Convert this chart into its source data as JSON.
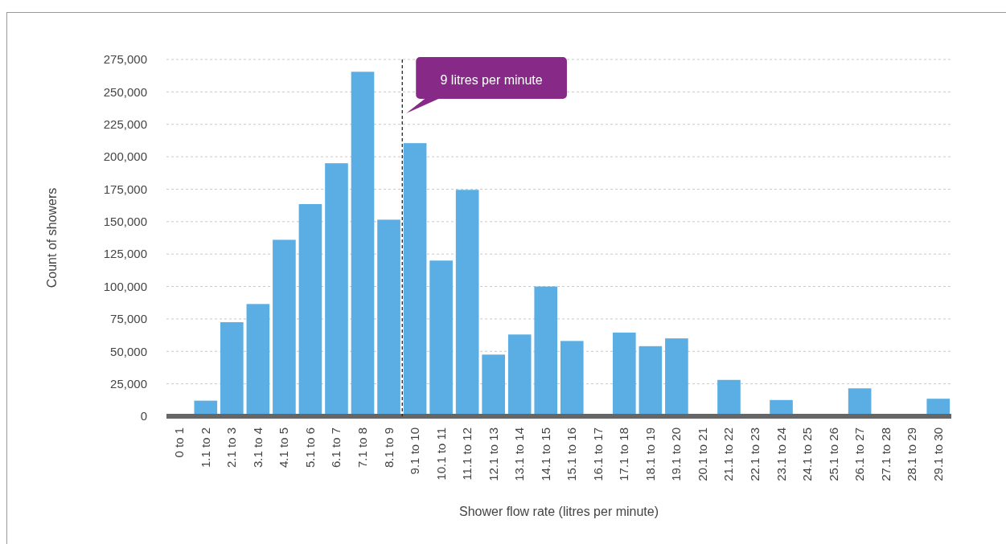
{
  "chart_data": {
    "type": "bar",
    "xlabel": "Shower flow rate (litres per minute)",
    "ylabel": "Count of showers",
    "categories": [
      "0 to 1",
      "1.1 to 2",
      "2.1 to 3",
      "3.1 to 4",
      "4.1 to 5",
      "5.1 to 6",
      "6.1 to 7",
      "7.1 to 8",
      "8.1 to 9",
      "9.1 to 10",
      "10.1 to 11",
      "11.1 to 12",
      "12.1 to 13",
      "13.1 to 14",
      "14.1 to 15",
      "15.1 to 16",
      "16.1 to 17",
      "17.1 to 18",
      "18.1 to 19",
      "19.1 to 20",
      "20.1 to 21",
      "21.1 to 22",
      "22.1 to 23",
      "23.1 to 24",
      "24.1 to 25",
      "25.1 to 26",
      "26.1 to 27",
      "27.1 to 28",
      "28.1 to 29",
      "29.1 to 30"
    ],
    "values": [
      0,
      12000,
      72500,
      86500,
      136000,
      163500,
      195000,
      265500,
      151500,
      210500,
      120000,
      174500,
      47500,
      63000,
      100000,
      58000,
      0,
      64500,
      54000,
      60000,
      0,
      28000,
      0,
      12500,
      0,
      0,
      21500,
      0,
      0,
      13500
    ],
    "color": "#5aaee3",
    "ylim": [
      0,
      275000
    ],
    "yticks": [
      {
        "value": 0,
        "label": "0"
      },
      {
        "value": 25000,
        "label": "25,000"
      },
      {
        "value": 50000,
        "label": "50,000"
      },
      {
        "value": 75000,
        "label": "75,000"
      },
      {
        "value": 100000,
        "label": "100,000"
      },
      {
        "value": 125000,
        "label": "125,000"
      },
      {
        "value": 150000,
        "label": "150,000"
      },
      {
        "value": 175000,
        "label": "175,000"
      },
      {
        "value": 200000,
        "label": "200,000"
      },
      {
        "value": 225000,
        "label": "225,000"
      },
      {
        "value": 250000,
        "label": "250,000"
      },
      {
        "value": 275000,
        "label": "275,000"
      }
    ],
    "grid": "y",
    "ref_lines": [
      {
        "axis": "x",
        "value": "9.1 to 10",
        "label": "9 litres per minute",
        "color": "#222222",
        "line_style": "dashed"
      }
    ]
  }
}
